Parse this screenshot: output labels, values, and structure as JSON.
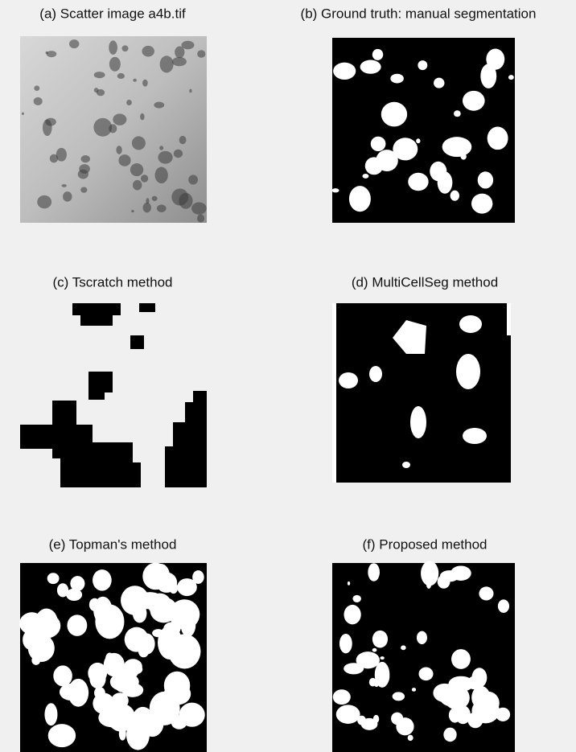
{
  "panels": [
    {
      "caption": "(a) Scatter image a4b.tif"
    },
    {
      "caption": "(b) Ground truth: manual segmentation"
    },
    {
      "caption": "(c) Tscratch method"
    },
    {
      "caption": "(d) MultiCellSeg method"
    },
    {
      "caption": "(e) Topman's method"
    },
    {
      "caption": "(f) Proposed method"
    }
  ]
}
